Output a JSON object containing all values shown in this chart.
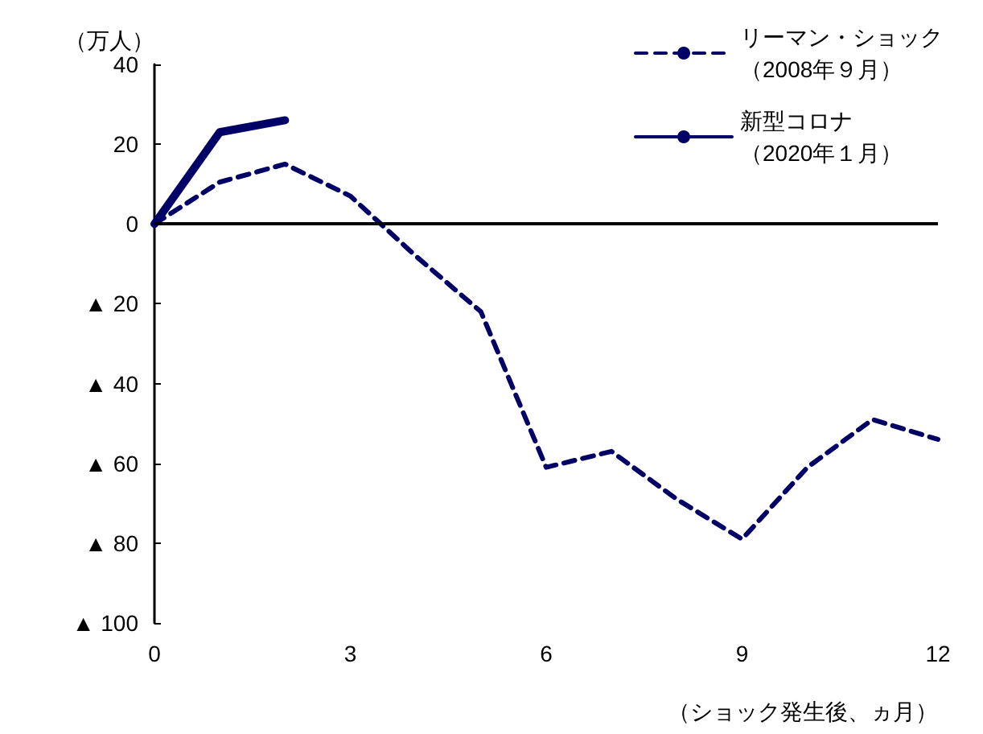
{
  "chart_data": {
    "type": "line",
    "ylabel": "（万人）",
    "xlabel": "（ショック発生後、ヵ月）",
    "xlim": [
      0,
      12
    ],
    "xticks": [
      0,
      3,
      6,
      9,
      12
    ],
    "ylim": [
      -100,
      40
    ],
    "yticks": [
      {
        "value": -100,
        "label": "▲ 100"
      },
      {
        "value": -80,
        "label": "▲ 80"
      },
      {
        "value": -60,
        "label": "▲ 60"
      },
      {
        "value": -40,
        "label": "▲ 40"
      },
      {
        "value": -20,
        "label": "▲ 20"
      },
      0,
      20,
      40
    ],
    "grid": false,
    "legend": "top right",
    "marker": "none",
    "ref_lines": [
      {
        "axis": "y",
        "value": 0,
        "color": "#000000"
      }
    ],
    "series": [
      {
        "name": "リーマン・ショック（2008年９月）",
        "color": "#000066",
        "line_style": "dashed",
        "x": [
          0,
          1,
          2,
          3,
          4,
          5,
          6,
          7,
          8,
          9,
          10,
          11,
          12
        ],
        "values": [
          0,
          10.5,
          15,
          7,
          -8,
          -22,
          -61,
          -57,
          -69,
          -79,
          -61,
          -49,
          -54
        ]
      },
      {
        "name": "新型コロナ（2020年１月）",
        "color": "#000066",
        "line_style": "solid",
        "x": [
          0,
          1,
          2
        ],
        "values": [
          0,
          23,
          26
        ]
      }
    ]
  }
}
